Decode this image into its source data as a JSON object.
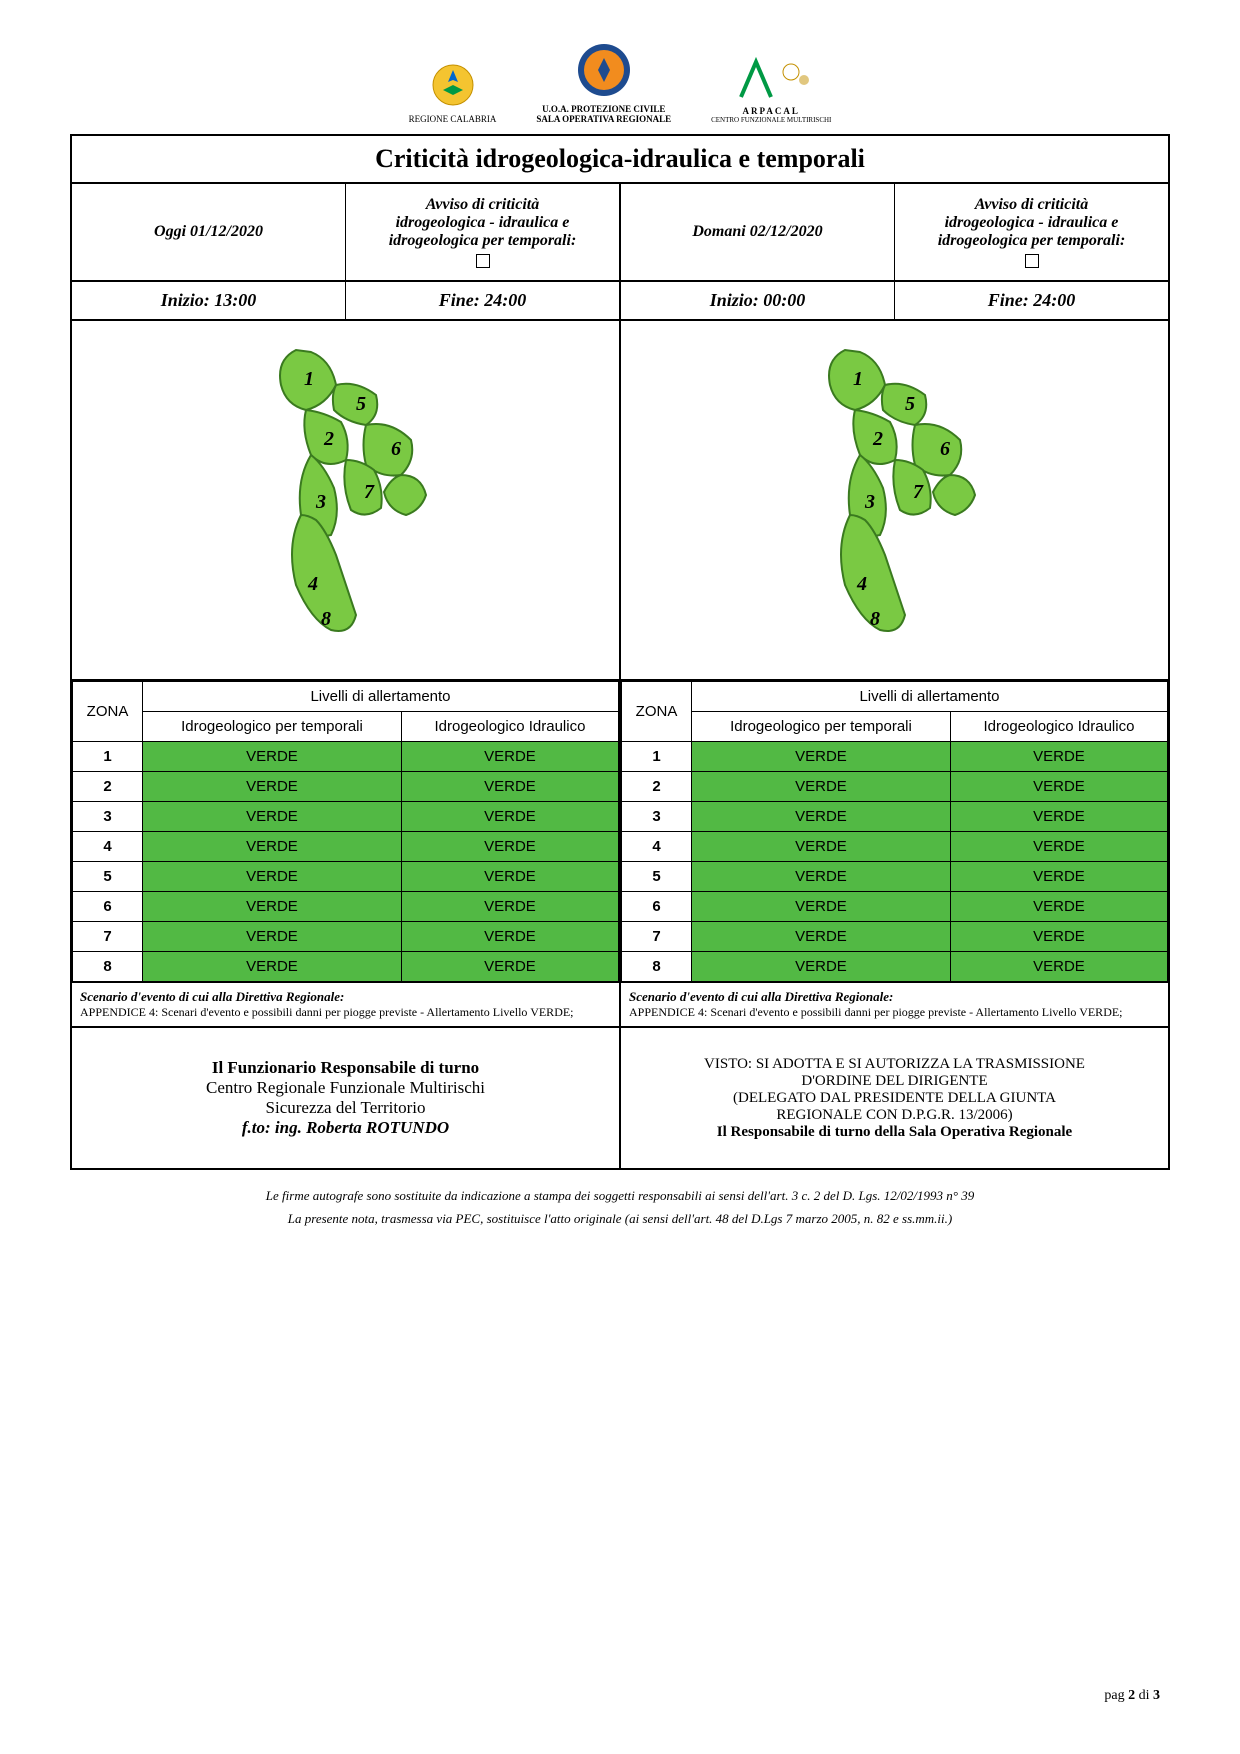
{
  "logos": {
    "regione": "REGIONE CALABRIA",
    "protezione_l1": "U.O.A. PROTEZIONE CIVILE",
    "protezione_l2": "SALA OPERATIVA REGIONALE",
    "arpacal": "ARPACAL",
    "arpacal_sub": "CENTRO FUNZIONALE MULTIRISCHI"
  },
  "title": "Criticità idrogeologica-idraulica e temporali",
  "colors": {
    "verde": "#52b944",
    "map_fill": "#7ac943",
    "map_stroke": "#3a7a1f",
    "border": "#000000"
  },
  "today": {
    "date_label": "Oggi 01/12/2020",
    "avviso_l1": "Avviso di criticità",
    "avviso_l2": "idrogeologica - idraulica e",
    "avviso_l3": "idrogeologica per temporali:",
    "inizio": "Inizio:  13:00",
    "fine": "Fine:  24:00"
  },
  "tomorrow": {
    "date_label": "Domani 02/12/2020",
    "avviso_l1": "Avviso di criticità",
    "avviso_l2": "idrogeologica - idraulica e",
    "avviso_l3": "idrogeologica per temporali:",
    "inizio": "Inizio:  00:00",
    "fine": "Fine:  24:00"
  },
  "table_headers": {
    "zona": "ZONA",
    "livelli": "Livelli di allertamento",
    "col1": "Idrogeologico per temporali",
    "col2": "Idrogeologico Idraulico"
  },
  "zones_today": [
    {
      "z": "1",
      "a": "VERDE",
      "b": "VERDE"
    },
    {
      "z": "2",
      "a": "VERDE",
      "b": "VERDE"
    },
    {
      "z": "3",
      "a": "VERDE",
      "b": "VERDE"
    },
    {
      "z": "4",
      "a": "VERDE",
      "b": "VERDE"
    },
    {
      "z": "5",
      "a": "VERDE",
      "b": "VERDE"
    },
    {
      "z": "6",
      "a": "VERDE",
      "b": "VERDE"
    },
    {
      "z": "7",
      "a": "VERDE",
      "b": "VERDE"
    },
    {
      "z": "8",
      "a": "VERDE",
      "b": "VERDE"
    }
  ],
  "zones_tomorrow": [
    {
      "z": "1",
      "a": "VERDE",
      "b": "VERDE"
    },
    {
      "z": "2",
      "a": "VERDE",
      "b": "VERDE"
    },
    {
      "z": "3",
      "a": "VERDE",
      "b": "VERDE"
    },
    {
      "z": "4",
      "a": "VERDE",
      "b": "VERDE"
    },
    {
      "z": "5",
      "a": "VERDE",
      "b": "VERDE"
    },
    {
      "z": "6",
      "a": "VERDE",
      "b": "VERDE"
    },
    {
      "z": "7",
      "a": "VERDE",
      "b": "VERDE"
    },
    {
      "z": "8",
      "a": "VERDE",
      "b": "VERDE"
    }
  ],
  "scenario": {
    "title": "Scenario d'evento di cui alla Direttiva Regionale:",
    "body": "APPENDICE 4: Scenari d'evento e possibili danni per piogge previste - Allertamento Livello VERDE;"
  },
  "sign_left": {
    "l1": "Il Funzionario Responsabile di turno",
    "l2": "Centro Regionale Funzionale Multirischi",
    "l3": "Sicurezza del Territorio",
    "l4": "f.to: ing. Roberta ROTUNDO"
  },
  "sign_right": {
    "l1": "VISTO: SI ADOTTA E SI AUTORIZZA LA TRASMISSIONE",
    "l2": "D'ORDINE DEL DIRIGENTE",
    "l3": "(DELEGATO DAL PRESIDENTE DELLA GIUNTA",
    "l4": "REGIONALE CON D.P.G.R. 13/2006)",
    "l5": "Il Responsabile di turno della Sala Operativa Regionale"
  },
  "footnotes": {
    "f1": "Le firme autografe sono sostituite da indicazione a stampa dei soggetti responsabili ai sensi dell'art. 3 c. 2 del D. Lgs. 12/02/1993 n° 39",
    "f2": "La presente nota, trasmessa via PEC, sostituisce l'atto originale (ai sensi dell'art. 48 del D.Lgs 7 marzo 2005, n. 82 e ss.mm.ii.)"
  },
  "page": {
    "label": "pag 2 di 3"
  },
  "map_zones": [
    "1",
    "2",
    "3",
    "4",
    "5",
    "6",
    "7",
    "8"
  ]
}
